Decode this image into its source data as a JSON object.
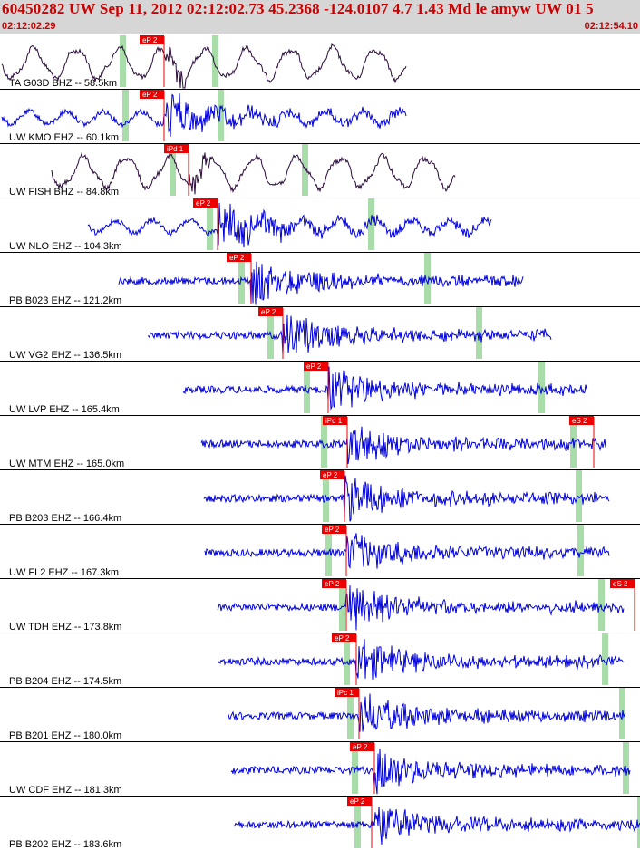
{
  "header": {
    "title": "60450282 UW Sep 11, 2012 02:12:02.73   45.2368 -124.0107  4.7 1.43 Md le amyw UW 01   5",
    "time_start": "02:12:02.29",
    "time_end": "02:12:54.10"
  },
  "colors": {
    "header_bg": "#d6d6d6",
    "header_text": "#cc0000",
    "waveform_broadband": "#2a0a3a",
    "waveform_short_period": "#0000dd",
    "pick_flag": "#ee0000",
    "window_marker": "#a8dca8",
    "separator": "#000000"
  },
  "traces": [
    {
      "label": "TA G03D BHZ -- 58.5km",
      "type": "broadband",
      "pick": "eP 2",
      "s_pick": ""
    },
    {
      "label": "UW KMO EHZ -- 60.1km",
      "type": "short_period",
      "pick": "eP 2",
      "s_pick": ""
    },
    {
      "label": "UW FISH BHZ -- 84.8km",
      "type": "broadband",
      "pick": "iPd 1",
      "s_pick": ""
    },
    {
      "label": "UW NLO EHZ -- 104.3km",
      "type": "short_period",
      "pick": "eP 2",
      "s_pick": ""
    },
    {
      "label": "PB B023 EHZ -- 121.2km",
      "type": "short_period",
      "pick": "eP 2",
      "s_pick": ""
    },
    {
      "label": "UW VG2 EHZ -- 136.5km",
      "type": "short_period",
      "pick": "eP 2",
      "s_pick": ""
    },
    {
      "label": "UW LVP EHZ -- 165.4km",
      "type": "short_period",
      "pick": "eP 2",
      "s_pick": ""
    },
    {
      "label": "UW MTM EHZ -- 165.0km",
      "type": "short_period",
      "pick": "iPd 1",
      "s_pick": "eS 2"
    },
    {
      "label": "PB B203 EHZ -- 166.4km",
      "type": "short_period",
      "pick": "eP 2",
      "s_pick": ""
    },
    {
      "label": "UW FL2 EHZ -- 167.3km",
      "type": "short_period",
      "pick": "eP 2",
      "s_pick": ""
    },
    {
      "label": "UW TDH EHZ -- 173.8km",
      "type": "short_period",
      "pick": "eP 2",
      "s_pick": "eS 2"
    },
    {
      "label": "PB B204 EHZ -- 174.5km",
      "type": "short_period",
      "pick": "eP 2",
      "s_pick": ""
    },
    {
      "label": "PB B201 EHZ -- 180.0km",
      "type": "short_period",
      "pick": "iPc 1",
      "s_pick": ""
    },
    {
      "label": "UW CDF EHZ -- 181.3km",
      "type": "short_period",
      "pick": "eP 2",
      "s_pick": ""
    },
    {
      "label": "PB B202 EHZ -- 183.6km",
      "type": "short_period",
      "pick": "eP 2",
      "s_pick": ""
    }
  ]
}
